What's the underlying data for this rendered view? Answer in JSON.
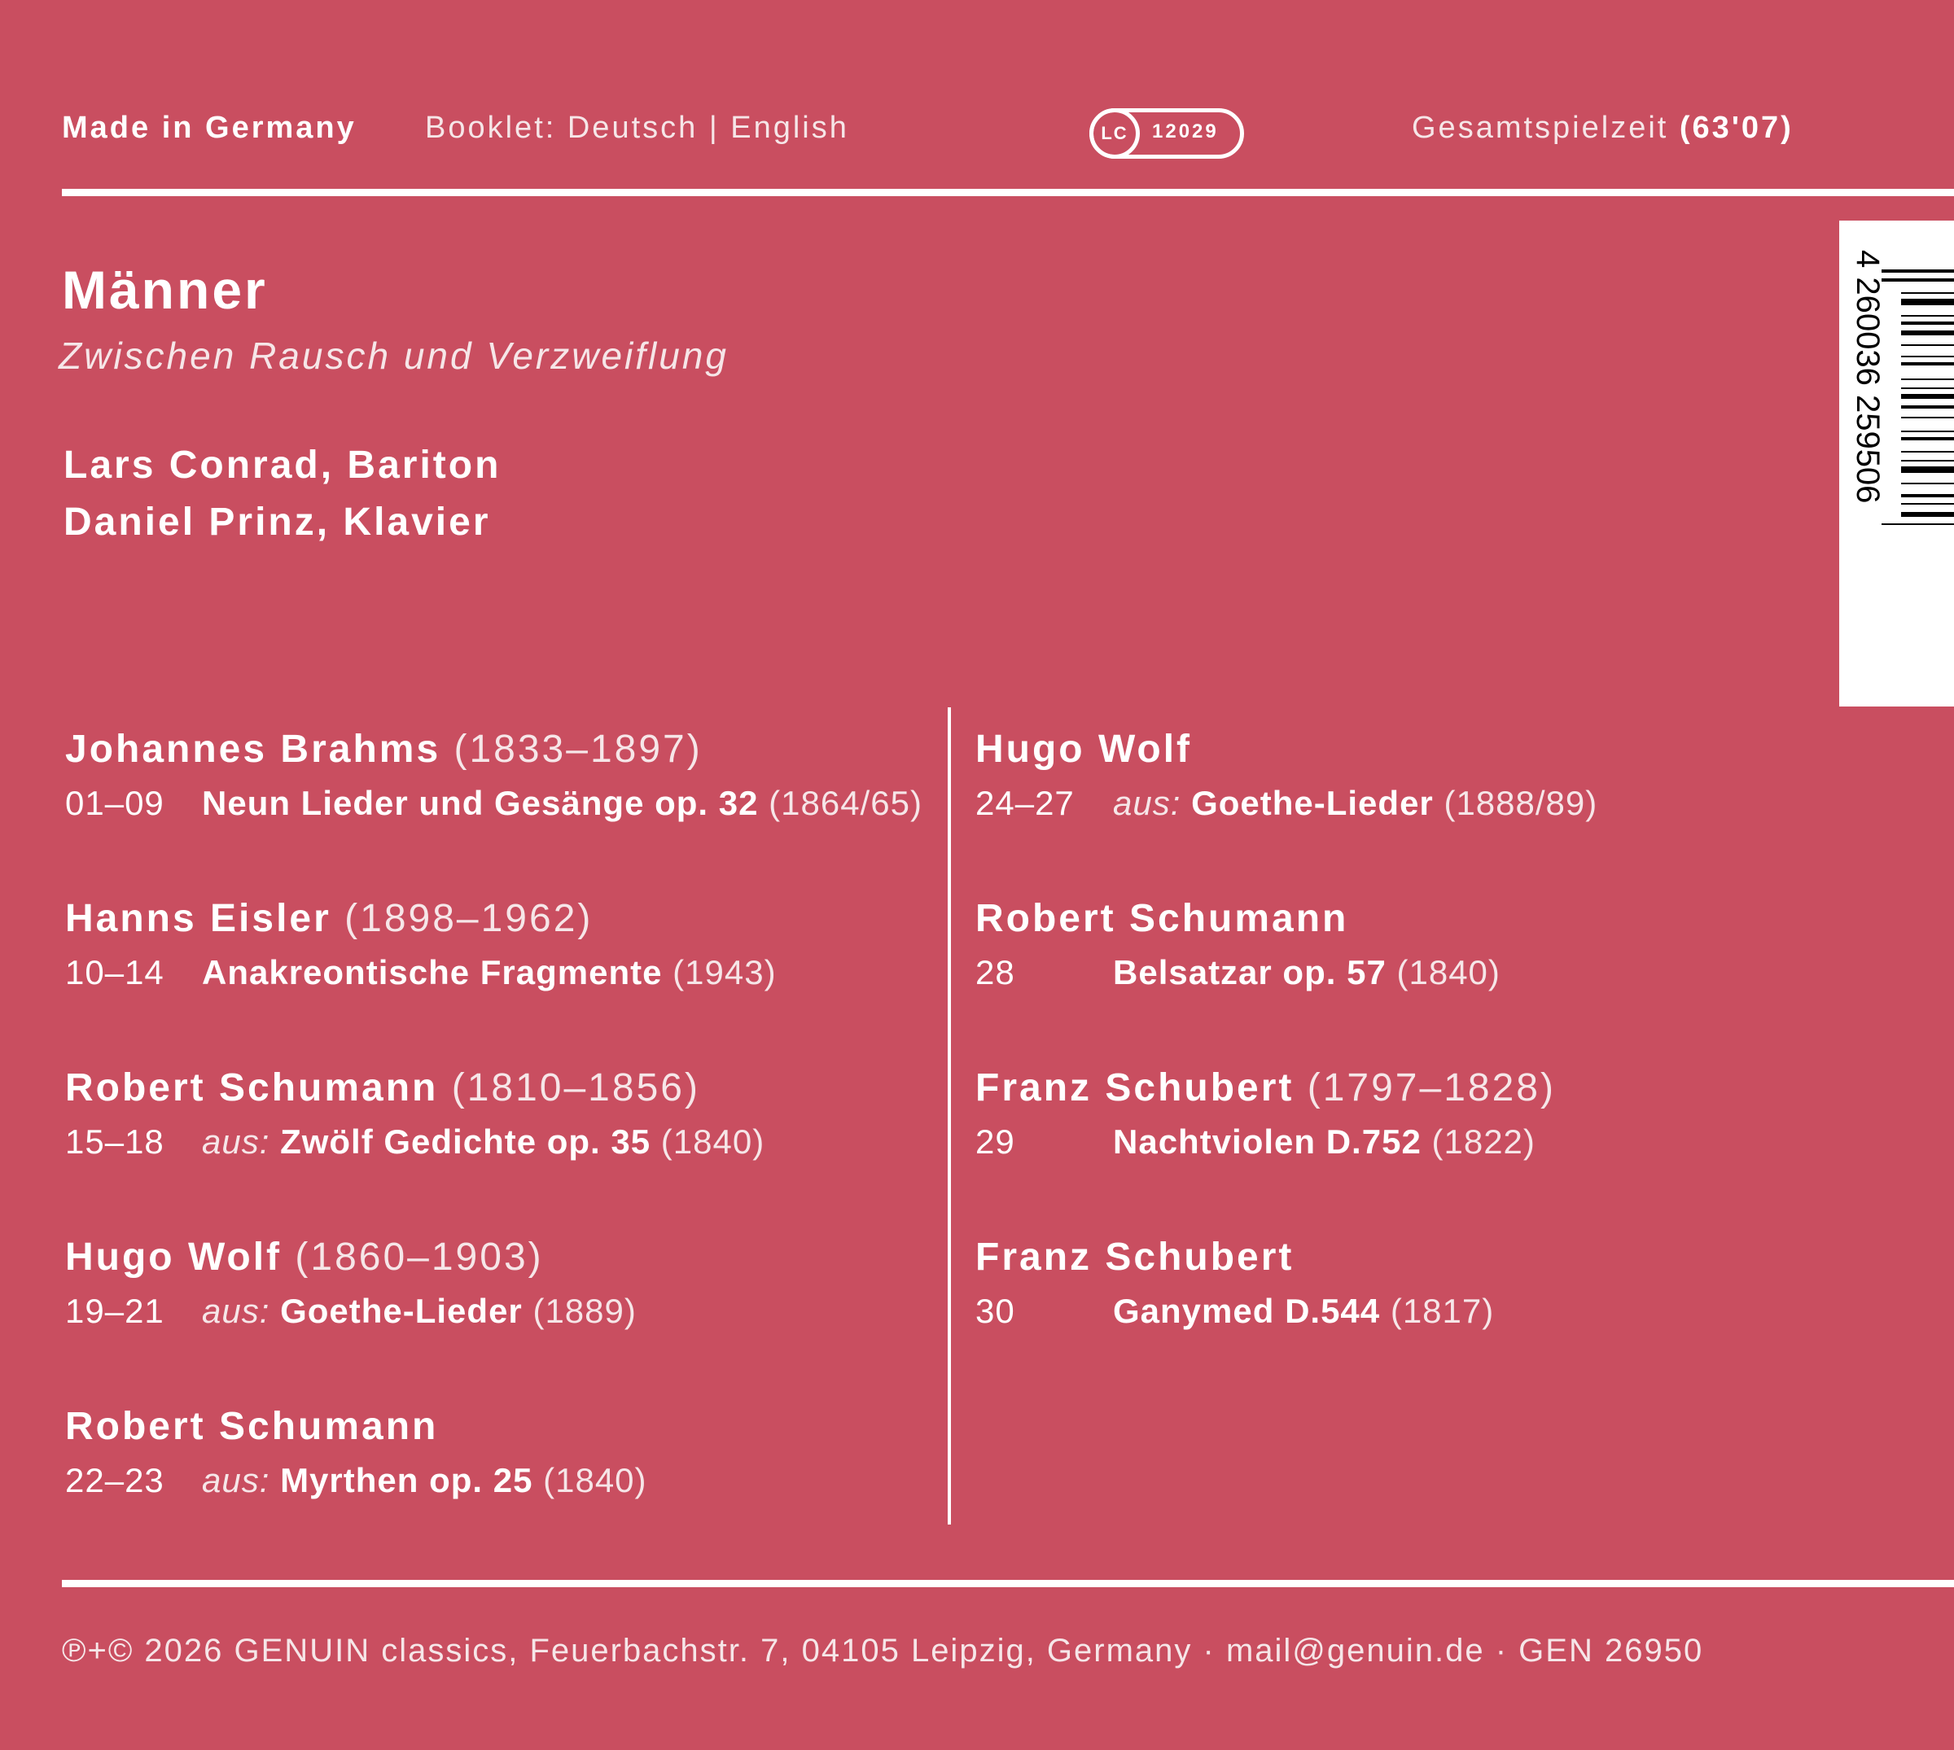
{
  "header": {
    "made_in": "Made in Germany",
    "booklet": "Booklet: Deutsch | English",
    "lc_label": "LC",
    "lc_number": "12029",
    "playtime_label": "Gesamtspielzeit",
    "playtime_value": "(63'07)"
  },
  "album": {
    "title": "Männer",
    "subtitle": "Zwischen Rausch und Verzweiflung",
    "performers": [
      "Lars Conrad, Bariton",
      "Daniel Prinz, Klavier"
    ]
  },
  "barcode": {
    "digits": "4 260036 259506"
  },
  "left_column": [
    {
      "composer": "Johannes Brahms",
      "dates": "(1833–1897)",
      "tracks": "01–09",
      "prefix": "",
      "work": "Neun Lieder und Gesänge op. 32",
      "year": "(1864/65)"
    },
    {
      "composer": "Hanns Eisler",
      "dates": "(1898–1962)",
      "tracks": "10–14",
      "prefix": "",
      "work": "Anakreontische Fragmente",
      "year": "(1943)"
    },
    {
      "composer": "Robert Schumann",
      "dates": "(1810–1856)",
      "tracks": "15–18",
      "prefix": "aus:",
      "work": "Zwölf Gedichte op. 35",
      "year": "(1840)"
    },
    {
      "composer": "Hugo Wolf",
      "dates": "(1860–1903)",
      "tracks": "19–21",
      "prefix": "aus:",
      "work": "Goethe-Lieder",
      "year": "(1889)"
    },
    {
      "composer": "Robert Schumann",
      "dates": "",
      "tracks": "22–23",
      "prefix": "aus:",
      "work": "Myrthen op. 25",
      "year": "(1840)"
    }
  ],
  "right_column": [
    {
      "composer": "Hugo Wolf",
      "dates": "",
      "tracks": "24–27",
      "prefix": "aus:",
      "work": "Goethe-Lieder",
      "year": "(1888/89)"
    },
    {
      "composer": "Robert Schumann",
      "dates": "",
      "tracks": "28",
      "prefix": "",
      "work": "Belsatzar op. 57",
      "year": "(1840)"
    },
    {
      "composer": "Franz Schubert",
      "dates": "(1797–1828)",
      "tracks": "29",
      "prefix": "",
      "work": "Nachtviolen D.752",
      "year": "(1822)"
    },
    {
      "composer": "Franz Schubert",
      "dates": "",
      "tracks": "30",
      "prefix": "",
      "work": "Ganymed D.544",
      "year": "(1817)"
    }
  ],
  "footer": {
    "text": "℗+© 2026 GENUIN classics, Feuerbachstr. 7, 04105 Leipzig, Germany · mail@genuin.de · GEN 26950"
  },
  "colors": {
    "background": "#c94e60",
    "text": "#ffffff"
  }
}
